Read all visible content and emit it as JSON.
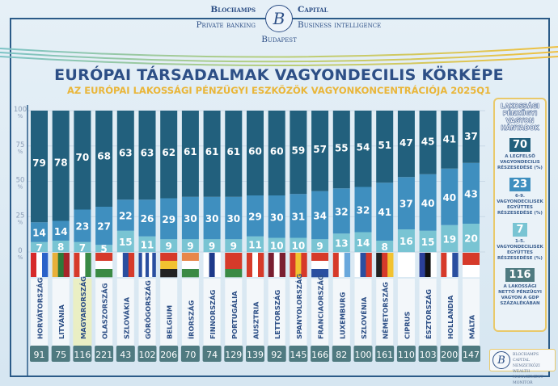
{
  "brand": {
    "left_top": "Blochamps",
    "left_bottom": "Private banking",
    "right_top": "Capital",
    "right_bottom": "Business intelligence",
    "center_bottom": "Budapest",
    "logo_letter": "B"
  },
  "colors": {
    "top": "#22607d",
    "middle": "#3f8fbf",
    "bottom": "#79c4d3",
    "gdp_box": "#4f7a80",
    "accent": "#e9b63a",
    "navy": "#2d4f86"
  },
  "legend": {
    "title": "LAKOSSÁGI PÉNZÜGYI VAGYON HÁNYADOK",
    "items": [
      {
        "value": "70",
        "label": "A LEGFELSŐ VAGYONDECILIS RÉSZESEDÉSE (%)"
      },
      {
        "value": "23",
        "label": "6-9. VAGYONDECILISEK EGYÜTTES RÉSZESEDÉSE (%)"
      },
      {
        "value": "7",
        "label": "1-5. VAGYONDECILISEK EGYÜTTES RÉSZESEDÉSE (%)"
      },
      {
        "value": "116",
        "label": "A LAKOSSÁGI NETTÓ PÉNZÜGYI VAGYON A GDP SZÁZALÉKÁBAN"
      }
    ]
  },
  "footer_logo": {
    "letter": "B",
    "lines": [
      "BLOCHAMPS CAPITAL",
      "NEMZETKÖZI WEALTH",
      "MANAGEMENT MONITOR"
    ]
  },
  "chart_data": {
    "type": "bar",
    "stacked": true,
    "title": "EURÓPAI TÁRSADALMAK VAGYONDECILIS KÖRKÉPE",
    "subtitle": "AZ EURÓPAI LAKOSSÁGI PÉNZÜGYI ESZKÖZÖK VAGYONKONCENTRÁCIÓJA 2025Q1",
    "ylim": [
      0,
      100
    ],
    "yticks": [
      "0",
      "25",
      "50",
      "75",
      "100"
    ],
    "ytick_unit": "%",
    "highlight": "MAGYARORSZÁG",
    "categories": [
      "HORVÁTORSZÁG",
      "LITVÁNIA",
      "MAGYARORSZÁG",
      "OLASZORSZÁG",
      "SZLOVÁKIA",
      "GÖRÖGORSZÁG",
      "BELGIUM",
      "ÍRORSZÁG",
      "FINNORSZÁG",
      "PORTUGÁLIA",
      "AUSZTRIA",
      "LETTORSZÁG",
      "SPANYOLORSZÁG",
      "FRANCIAORSZÁG",
      "LUXEMBURG",
      "SZLOVÉNIA",
      "NÉMETORSZÁG",
      "CIPRUS",
      "ÉSZTORSZÁG",
      "HOLLANDIA",
      "MÁLTA"
    ],
    "series": [
      {
        "name": "1-5. vagyondecilisek",
        "values": [
          7,
          8,
          7,
          5,
          15,
          11,
          9,
          9,
          9,
          9,
          11,
          10,
          10,
          9,
          13,
          14,
          8,
          16,
          15,
          19,
          20
        ]
      },
      {
        "name": "6-9. vagyondecilisek",
        "values": [
          14,
          14,
          23,
          27,
          22,
          26,
          29,
          30,
          30,
          30,
          29,
          30,
          31,
          34,
          32,
          32,
          41,
          37,
          40,
          40,
          43
        ]
      },
      {
        "name": "Legfelső decilis",
        "values": [
          79,
          78,
          70,
          68,
          63,
          63,
          62,
          61,
          61,
          61,
          60,
          60,
          59,
          57,
          55,
          54,
          51,
          47,
          45,
          41,
          37
        ]
      }
    ],
    "gdp_percent": [
      91,
      75,
      116,
      221,
      43,
      102,
      206,
      70,
      74,
      129,
      139,
      92,
      145,
      166,
      82,
      100,
      161,
      110,
      103,
      200,
      147
    ],
    "flags": [
      {
        "d": "v",
        "c": [
          "#d62a2a",
          "#ffffff",
          "#2a62c9"
        ]
      },
      {
        "d": "v",
        "c": [
          "#e8b03a",
          "#2d7a3a",
          "#a8252a"
        ]
      },
      {
        "d": "v",
        "c": [
          "#d63a2a",
          "#ffffff",
          "#3a8a44"
        ]
      },
      {
        "d": "h",
        "c": [
          "#d63a2a",
          "#ffffff",
          "#3a8a44"
        ]
      },
      {
        "d": "v",
        "c": [
          "#ffffff",
          "#2a4fa0",
          "#d63a2a"
        ]
      },
      {
        "d": "v",
        "c": [
          "#2a4fa0",
          "#ffffff",
          "#2a4fa0",
          "#ffffff",
          "#2a4fa0"
        ]
      },
      {
        "d": "h",
        "c": [
          "#d63a2a",
          "#f2c230",
          "#222222"
        ]
      },
      {
        "d": "h",
        "c": [
          "#e8874a",
          "#ffffff",
          "#3a8a44"
        ]
      },
      {
        "d": "v",
        "c": [
          "#ffffff",
          "#1e3a8a",
          "#ffffff"
        ]
      },
      {
        "d": "h",
        "c": [
          "#d63a2a",
          "#d63a2a",
          "#3a8a44"
        ]
      },
      {
        "d": "v",
        "c": [
          "#d63a2a",
          "#ffffff",
          "#d63a2a"
        ]
      },
      {
        "d": "v",
        "c": [
          "#7a1f30",
          "#ffffff",
          "#7a1f30"
        ]
      },
      {
        "d": "v",
        "c": [
          "#d63a2a",
          "#f2c230",
          "#d63a2a"
        ]
      },
      {
        "d": "h",
        "c": [
          "#d63a2a",
          "#ffffff",
          "#2a4fa0"
        ]
      },
      {
        "d": "v",
        "c": [
          "#d63a2a",
          "#ffffff",
          "#6aa8dc"
        ]
      },
      {
        "d": "v",
        "c": [
          "#ffffff",
          "#2a4fa0",
          "#d63a2a"
        ]
      },
      {
        "d": "v",
        "c": [
          "#222222",
          "#d63a2a",
          "#f2c230"
        ]
      },
      {
        "d": "v",
        "c": [
          "#ffffff"
        ]
      },
      {
        "d": "v",
        "c": [
          "#2a3f9a",
          "#111111",
          "#ffffff"
        ]
      },
      {
        "d": "v",
        "c": [
          "#d63a2a",
          "#ffffff",
          "#2a4fa0"
        ]
      },
      {
        "d": "h",
        "c": [
          "#d63a2a",
          "#ffffff"
        ]
      }
    ]
  }
}
